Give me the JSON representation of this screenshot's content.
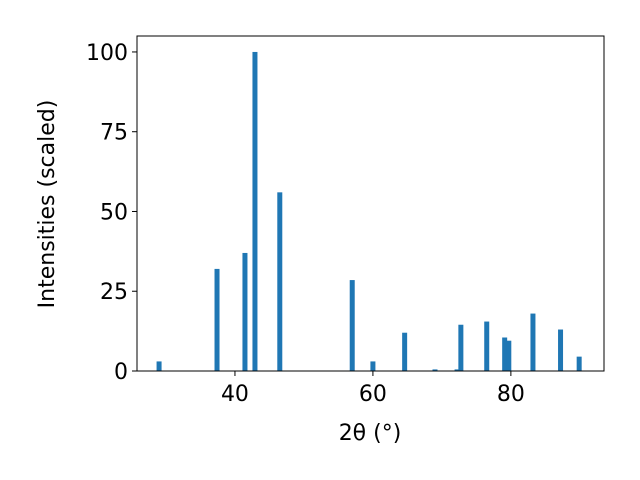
{
  "chart_data": {
    "type": "bar",
    "x_label": "2θ (°)",
    "y_label": "Intensities (scaled)",
    "x": [
      29.0,
      37.4,
      41.45,
      42.9,
      46.5,
      57.0,
      60.0,
      64.6,
      69.0,
      72.2,
      72.75,
      76.5,
      79.1,
      79.7,
      83.2,
      87.2,
      89.9
    ],
    "values": [
      3,
      32,
      37,
      100,
      56,
      28.5,
      3,
      12,
      0.5,
      0.5,
      14.5,
      15.5,
      10.5,
      9.5,
      18,
      13,
      4.5
    ],
    "color": "#1f77b4",
    "xlim": [
      25.8,
      93.5
    ],
    "ylim": [
      0,
      105
    ],
    "xticks": [
      40,
      60,
      80
    ],
    "yticks": [
      0,
      25,
      50,
      75,
      100
    ]
  }
}
